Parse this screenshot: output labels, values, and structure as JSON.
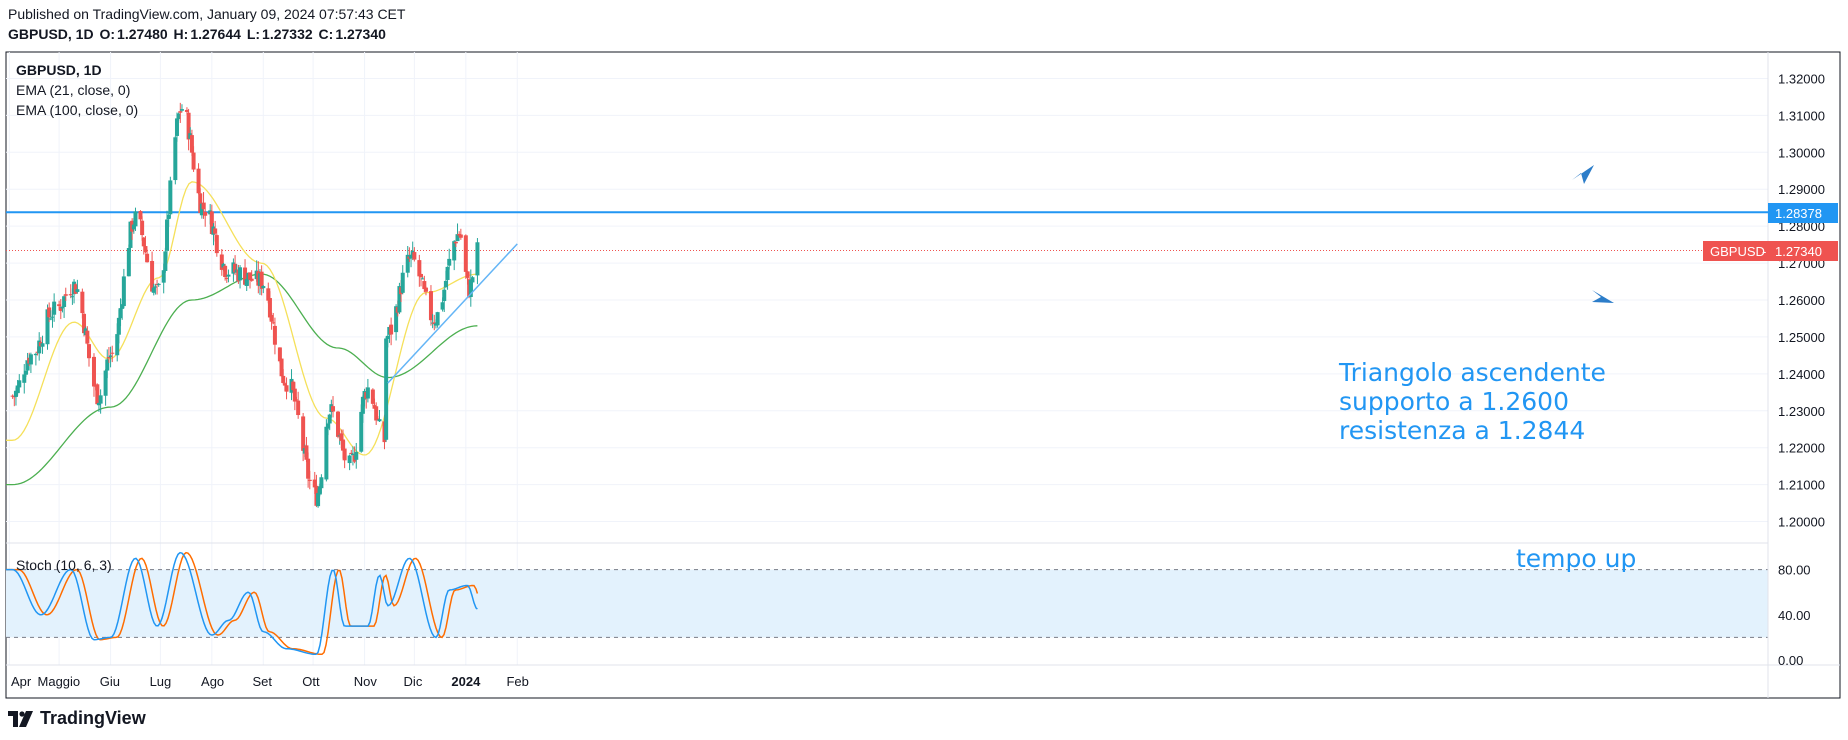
{
  "header": {
    "published": "Published on TradingView.com, January 09, 2024 07:57:43 CET",
    "symbol": "GBPUSD, 1D",
    "o_label": "O:",
    "o": "1.27480",
    "h_label": "H:",
    "h": "1.27644",
    "l_label": "L:",
    "l": "1.27332",
    "c_label": "C:",
    "c": "1.27340"
  },
  "legend": {
    "symbol": "GBPUSD, 1D",
    "ema21": "EMA (21, close, 0)",
    "ema100": "EMA (100, close, 0)",
    "stoch": "Stoch (10, 6, 3)"
  },
  "annotations": {
    "triangle_l1": "Triangolo ascendente",
    "triangle_l2": "supporto a 1.2600",
    "triangle_l3": "resistenza a 1.2844",
    "tempo": "tempo up"
  },
  "price_axis": [
    "1.32000",
    "1.31000",
    "1.30000",
    "1.29000",
    "1.28000",
    "1.27000",
    "1.26000",
    "1.25000",
    "1.24000",
    "1.23000",
    "1.22000",
    "1.21000",
    "1.20000"
  ],
  "stoch_axis": [
    "80.00",
    "40.00",
    "0.00"
  ],
  "badges": {
    "resistance": "1.28378",
    "resistance_value": 1.28378,
    "last_label": "GBPUSD",
    "last": "1.27340",
    "last_value": 1.2734
  },
  "time_axis": [
    "Apr",
    "Maggio",
    "Giu",
    "Lug",
    "Ago",
    "Set",
    "Ott",
    "Nov",
    "Dic",
    "2024",
    "Feb"
  ],
  "footer": {
    "brand": "TradingView"
  },
  "colors": {
    "up": "#26a69a",
    "down": "#ef5350",
    "ema21": "#f5e05a",
    "ema100": "#4caf50",
    "resistance": "#2196f3",
    "trendline": "#64b5f6",
    "stoch_k": "#2196f3",
    "stoch_d": "#ff6d00",
    "stoch_band": "#e3f2fd",
    "annotation": "#2196f3",
    "last_price": "#ef5350"
  },
  "chart_data": {
    "type": "candlestick",
    "symbol": "GBPUSD",
    "interval": "1D",
    "ylim": [
      1.195,
      1.325
    ],
    "resistance_level": 1.28378,
    "last_close": 1.2734,
    "ohlc_close_anchors": [
      {
        "date": "2023-04-03",
        "close": 1.234
      },
      {
        "date": "2023-04-14",
        "close": 1.245
      },
      {
        "date": "2023-04-28",
        "close": 1.257
      },
      {
        "date": "2023-05-10",
        "close": 1.264
      },
      {
        "date": "2023-05-25",
        "close": 1.234
      },
      {
        "date": "2023-06-01",
        "close": 1.245
      },
      {
        "date": "2023-06-16",
        "close": 1.282
      },
      {
        "date": "2023-06-29",
        "close": 1.262
      },
      {
        "date": "2023-07-14",
        "close": 1.312
      },
      {
        "date": "2023-07-27",
        "close": 1.285
      },
      {
        "date": "2023-08-11",
        "close": 1.268
      },
      {
        "date": "2023-08-31",
        "close": 1.265
      },
      {
        "date": "2023-09-15",
        "close": 1.238
      },
      {
        "date": "2023-10-03",
        "close": 1.207
      },
      {
        "date": "2023-10-11",
        "close": 1.23
      },
      {
        "date": "2023-10-23",
        "close": 1.215
      },
      {
        "date": "2023-11-03",
        "close": 1.236
      },
      {
        "date": "2023-11-13",
        "close": 1.222
      },
      {
        "date": "2023-11-14",
        "close": 1.25
      },
      {
        "date": "2023-11-29",
        "close": 1.271
      },
      {
        "date": "2023-12-13",
        "close": 1.255
      },
      {
        "date": "2023-12-28",
        "close": 1.278
      },
      {
        "date": "2024-01-03",
        "close": 1.263
      },
      {
        "date": "2024-01-08",
        "close": 1.2734
      }
    ],
    "ema21_anchors": [
      {
        "date": "2023-04-03",
        "value": 1.222
      },
      {
        "date": "2023-05-10",
        "value": 1.254
      },
      {
        "date": "2023-05-31",
        "value": 1.244
      },
      {
        "date": "2023-06-30",
        "value": 1.266
      },
      {
        "date": "2023-07-20",
        "value": 1.292
      },
      {
        "date": "2023-08-31",
        "value": 1.27
      },
      {
        "date": "2023-10-09",
        "value": 1.228
      },
      {
        "date": "2023-11-01",
        "value": 1.218
      },
      {
        "date": "2023-12-08",
        "value": 1.262
      },
      {
        "date": "2024-01-08",
        "value": 1.267
      }
    ],
    "ema100_anchors": [
      {
        "date": "2023-04-03",
        "value": 1.21
      },
      {
        "date": "2023-06-01",
        "value": 1.231
      },
      {
        "date": "2023-07-20",
        "value": 1.26
      },
      {
        "date": "2023-08-31",
        "value": 1.267
      },
      {
        "date": "2023-10-16",
        "value": 1.247
      },
      {
        "date": "2023-11-15",
        "value": 1.239
      },
      {
        "date": "2024-01-08",
        "value": 1.253
      }
    ],
    "trendline": {
      "start": {
        "date": "2023-11-15",
        "value": 1.2375
      },
      "end": {
        "date": "2024-02-01",
        "value": 1.2752
      }
    },
    "stochastic": {
      "name": "Stoch (10, 6, 3)",
      "ylim": [
        0,
        100
      ],
      "bands": [
        20,
        80
      ],
      "k_anchors": [
        {
          "date": "2023-04-03",
          "value": 80
        },
        {
          "date": "2023-04-20",
          "value": 40
        },
        {
          "date": "2023-05-08",
          "value": 80
        },
        {
          "date": "2023-05-22",
          "value": 18
        },
        {
          "date": "2023-06-01",
          "value": 20
        },
        {
          "date": "2023-06-16",
          "value": 90
        },
        {
          "date": "2023-06-29",
          "value": 30
        },
        {
          "date": "2023-07-13",
          "value": 95
        },
        {
          "date": "2023-08-01",
          "value": 22
        },
        {
          "date": "2023-08-11",
          "value": 35
        },
        {
          "date": "2023-08-23",
          "value": 60
        },
        {
          "date": "2023-09-01",
          "value": 25
        },
        {
          "date": "2023-09-15",
          "value": 10
        },
        {
          "date": "2023-10-03",
          "value": 5
        },
        {
          "date": "2023-10-13",
          "value": 80
        },
        {
          "date": "2023-10-20",
          "value": 30
        },
        {
          "date": "2023-11-03",
          "value": 30
        },
        {
          "date": "2023-11-10",
          "value": 75
        },
        {
          "date": "2023-11-15",
          "value": 48
        },
        {
          "date": "2023-11-28",
          "value": 90
        },
        {
          "date": "2023-12-14",
          "value": 20
        },
        {
          "date": "2023-12-22",
          "value": 62
        },
        {
          "date": "2024-01-02",
          "value": 66
        },
        {
          "date": "2024-01-08",
          "value": 45
        }
      ]
    }
  }
}
